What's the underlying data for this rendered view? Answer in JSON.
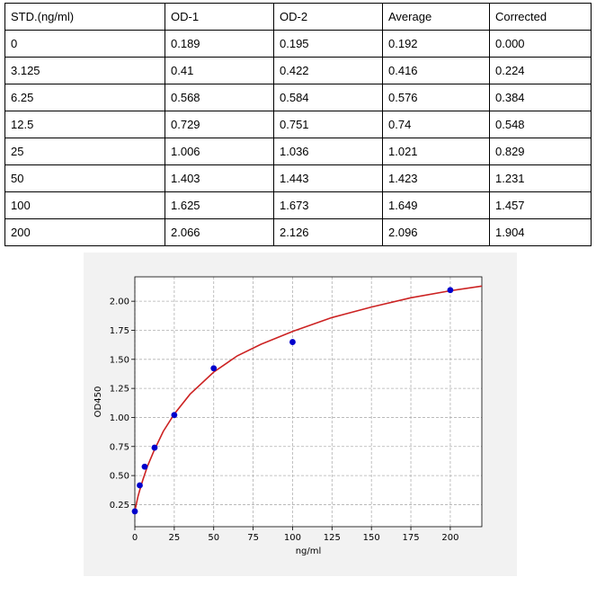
{
  "table": {
    "headers": [
      "STD.(ng/ml)",
      "OD-1",
      "OD-2",
      "Average",
      "Corrected"
    ],
    "rows": [
      [
        "0",
        "0.189",
        "0.195",
        "0.192",
        "0.000"
      ],
      [
        "3.125",
        "0.41",
        "0.422",
        "0.416",
        "0.224"
      ],
      [
        "6.25",
        "0.568",
        "0.584",
        "0.576",
        "0.384"
      ],
      [
        "12.5",
        "0.729",
        "0.751",
        "0.74",
        "0.548"
      ],
      [
        "25",
        "1.006",
        "1.036",
        "1.021",
        "0.829"
      ],
      [
        "50",
        "1.403",
        "1.443",
        "1.423",
        "1.231"
      ],
      [
        "100",
        "1.625",
        "1.673",
        "1.649",
        "1.457"
      ],
      [
        "200",
        "2.066",
        "2.126",
        "2.096",
        "1.904"
      ]
    ]
  },
  "chart_data": {
    "type": "scatter",
    "xlabel": "ng/ml",
    "ylabel": "OD450",
    "xlim": [
      0,
      220
    ],
    "ylim": [
      0.06,
      2.21
    ],
    "xticks": [
      0,
      25,
      50,
      75,
      100,
      125,
      150,
      175,
      200
    ],
    "yticks": [
      0.25,
      0.5,
      0.75,
      1.0,
      1.25,
      1.5,
      1.75,
      2.0
    ],
    "xtick_labels": [
      "0",
      "25",
      "50",
      "75",
      "100",
      "125",
      "150",
      "175",
      "200"
    ],
    "ytick_labels": [
      "0.25",
      "0.50",
      "0.75",
      "1.00",
      "1.25",
      "1.50",
      "1.75",
      "2.00"
    ],
    "grid": true,
    "points": {
      "x": [
        0,
        3.125,
        6.25,
        12.5,
        25,
        50,
        100,
        200
      ],
      "y": [
        0.192,
        0.416,
        0.576,
        0.74,
        1.021,
        1.423,
        1.649,
        2.096
      ],
      "color": "#0000cc"
    },
    "fit_curve": {
      "color": "#cc2222",
      "x": [
        0,
        1,
        2,
        3,
        5,
        8,
        12,
        18,
        25,
        35,
        50,
        65,
        80,
        100,
        125,
        150,
        175,
        200,
        220
      ],
      "y": [
        0.192,
        0.26,
        0.32,
        0.37,
        0.46,
        0.58,
        0.71,
        0.88,
        1.03,
        1.2,
        1.39,
        1.53,
        1.63,
        1.74,
        1.86,
        1.95,
        2.03,
        2.09,
        2.13
      ]
    }
  }
}
